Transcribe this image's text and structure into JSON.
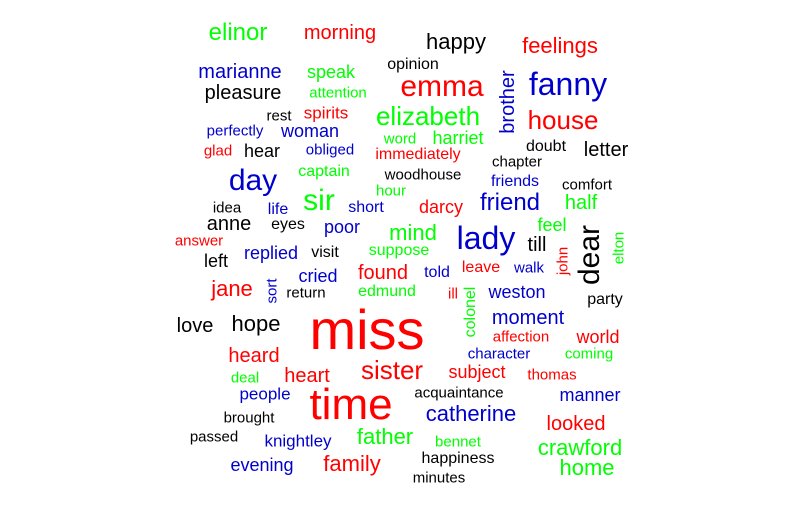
{
  "palette": {
    "red": "#ff0000",
    "green": "#00ff00",
    "blue": "#0000cc",
    "black": "#000000",
    "background": "#ffffff"
  },
  "words": [
    {
      "text": "elinor",
      "color": "green"
    },
    {
      "text": "morning",
      "color": "red"
    },
    {
      "text": "happy",
      "color": "black"
    },
    {
      "text": "feelings",
      "color": "red"
    },
    {
      "text": "opinion",
      "color": "black"
    },
    {
      "text": "marianne",
      "color": "blue"
    },
    {
      "text": "speak",
      "color": "green"
    },
    {
      "text": "emma",
      "color": "red"
    },
    {
      "text": "brother",
      "color": "blue",
      "vertical": true
    },
    {
      "text": "fanny",
      "color": "blue"
    },
    {
      "text": "pleasure",
      "color": "black"
    },
    {
      "text": "attention",
      "color": "green"
    },
    {
      "text": "rest",
      "color": "black"
    },
    {
      "text": "spirits",
      "color": "red"
    },
    {
      "text": "elizabeth",
      "color": "green"
    },
    {
      "text": "house",
      "color": "red"
    },
    {
      "text": "perfectly",
      "color": "blue"
    },
    {
      "text": "woman",
      "color": "blue"
    },
    {
      "text": "word",
      "color": "green"
    },
    {
      "text": "harriet",
      "color": "green"
    },
    {
      "text": "glad",
      "color": "red"
    },
    {
      "text": "hear",
      "color": "black"
    },
    {
      "text": "obliged",
      "color": "blue"
    },
    {
      "text": "immediately",
      "color": "red"
    },
    {
      "text": "doubt",
      "color": "black"
    },
    {
      "text": "letter",
      "color": "black"
    },
    {
      "text": "chapter",
      "color": "black"
    },
    {
      "text": "day",
      "color": "blue"
    },
    {
      "text": "captain",
      "color": "green"
    },
    {
      "text": "woodhouse",
      "color": "black"
    },
    {
      "text": "friends",
      "color": "blue"
    },
    {
      "text": "comfort",
      "color": "black"
    },
    {
      "text": "hour",
      "color": "green"
    },
    {
      "text": "sir",
      "color": "green"
    },
    {
      "text": "idea",
      "color": "black"
    },
    {
      "text": "life",
      "color": "blue"
    },
    {
      "text": "short",
      "color": "blue"
    },
    {
      "text": "darcy",
      "color": "red"
    },
    {
      "text": "friend",
      "color": "blue"
    },
    {
      "text": "half",
      "color": "green"
    },
    {
      "text": "anne",
      "color": "black"
    },
    {
      "text": "eyes",
      "color": "black"
    },
    {
      "text": "poor",
      "color": "blue"
    },
    {
      "text": "feel",
      "color": "green"
    },
    {
      "text": "mind",
      "color": "green"
    },
    {
      "text": "lady",
      "color": "blue"
    },
    {
      "text": "dear",
      "color": "black",
      "vertical": true
    },
    {
      "text": "elton",
      "color": "green",
      "vertical": true
    },
    {
      "text": "answer",
      "color": "red"
    },
    {
      "text": "till",
      "color": "black"
    },
    {
      "text": "replied",
      "color": "blue"
    },
    {
      "text": "visit",
      "color": "black"
    },
    {
      "text": "suppose",
      "color": "green"
    },
    {
      "text": "john",
      "color": "red",
      "vertical": true
    },
    {
      "text": "left",
      "color": "black"
    },
    {
      "text": "leave",
      "color": "red"
    },
    {
      "text": "walk",
      "color": "blue"
    },
    {
      "text": "cried",
      "color": "blue"
    },
    {
      "text": "found",
      "color": "red"
    },
    {
      "text": "told",
      "color": "blue"
    },
    {
      "text": "jane",
      "color": "red"
    },
    {
      "text": "sort",
      "color": "blue",
      "vertical": true
    },
    {
      "text": "return",
      "color": "black"
    },
    {
      "text": "edmund",
      "color": "green"
    },
    {
      "text": "ill",
      "color": "red"
    },
    {
      "text": "weston",
      "color": "blue"
    },
    {
      "text": "party",
      "color": "black"
    },
    {
      "text": "colonel",
      "color": "green",
      "vertical": true
    },
    {
      "text": "love",
      "color": "black"
    },
    {
      "text": "hope",
      "color": "black"
    },
    {
      "text": "miss",
      "color": "red"
    },
    {
      "text": "moment",
      "color": "blue"
    },
    {
      "text": "affection",
      "color": "red"
    },
    {
      "text": "world",
      "color": "red"
    },
    {
      "text": "heard",
      "color": "red"
    },
    {
      "text": "character",
      "color": "blue"
    },
    {
      "text": "coming",
      "color": "green"
    },
    {
      "text": "sister",
      "color": "red"
    },
    {
      "text": "deal",
      "color": "green"
    },
    {
      "text": "heart",
      "color": "red"
    },
    {
      "text": "subject",
      "color": "red"
    },
    {
      "text": "thomas",
      "color": "red"
    },
    {
      "text": "people",
      "color": "blue"
    },
    {
      "text": "acquaintance",
      "color": "black"
    },
    {
      "text": "manner",
      "color": "blue"
    },
    {
      "text": "time",
      "color": "red"
    },
    {
      "text": "brought",
      "color": "black"
    },
    {
      "text": "catherine",
      "color": "blue"
    },
    {
      "text": "looked",
      "color": "red"
    },
    {
      "text": "passed",
      "color": "black"
    },
    {
      "text": "father",
      "color": "green"
    },
    {
      "text": "knightley",
      "color": "blue"
    },
    {
      "text": "bennet",
      "color": "green"
    },
    {
      "text": "crawford",
      "color": "green"
    },
    {
      "text": "happiness",
      "color": "black"
    },
    {
      "text": "evening",
      "color": "blue"
    },
    {
      "text": "family",
      "color": "red"
    },
    {
      "text": "home",
      "color": "green"
    },
    {
      "text": "minutes",
      "color": "black"
    }
  ]
}
